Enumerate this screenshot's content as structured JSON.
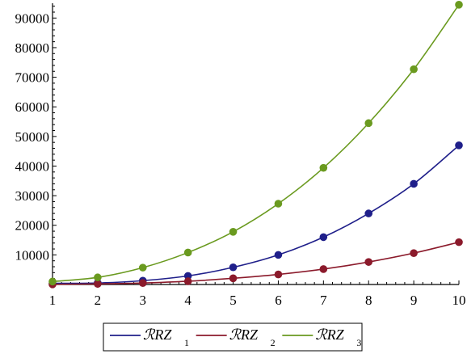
{
  "chart_data": {
    "type": "line",
    "title": "",
    "xlabel": "",
    "ylabel": "",
    "x": [
      1,
      2,
      3,
      4,
      5,
      6,
      7,
      8,
      9,
      10
    ],
    "xlim": [
      1,
      10
    ],
    "ylim": [
      0,
      95000
    ],
    "x_ticks": [
      1,
      2,
      3,
      4,
      5,
      6,
      7,
      8,
      9,
      10
    ],
    "y_ticks": [
      10000,
      20000,
      30000,
      40000,
      50000,
      60000,
      70000,
      80000,
      90000
    ],
    "grid": false,
    "legend_position": "bottom",
    "series": [
      {
        "name": "ℛRZ",
        "subscript": "1",
        "color": "#1f1f8a",
        "values": [
          400,
          500,
          1300,
          2900,
          5800,
          10000,
          16000,
          24000,
          34000,
          47000
        ]
      },
      {
        "name": "ℛRZ",
        "subscript": "2",
        "color": "#8b1a2b",
        "values": [
          50,
          200,
          500,
          1100,
          2100,
          3400,
          5200,
          7600,
          10600,
          14300
        ]
      },
      {
        "name": "ℛRZ",
        "subscript": "3",
        "color": "#6a9a1f",
        "values": [
          1000,
          2400,
          5700,
          10800,
          17800,
          27300,
          39400,
          54500,
          72700,
          94500
        ]
      }
    ]
  }
}
